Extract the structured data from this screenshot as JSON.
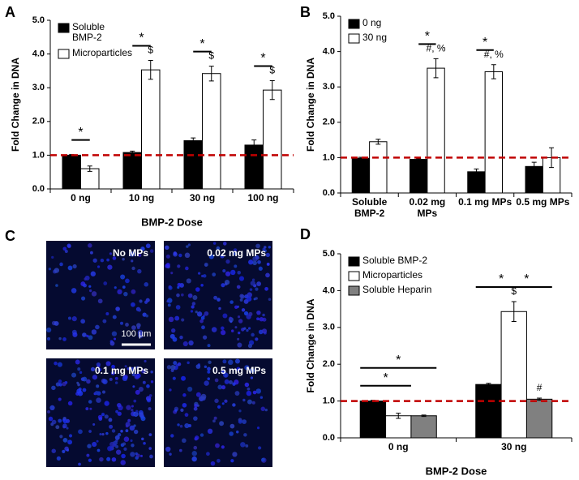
{
  "chart_data": [
    {
      "type": "bar",
      "label": "A",
      "ylabel": "Fold Change in DNA",
      "xlabel": "BMP-2 Dose",
      "categories": [
        "0 ng",
        "10 ng",
        "30 ng",
        "100 ng"
      ],
      "series": [
        {
          "name": "Soluble BMP-2",
          "color": "#000000",
          "values": [
            1.0,
            1.08,
            1.43,
            1.3
          ],
          "errors": [
            0.02,
            0.04,
            0.08,
            0.15
          ]
        },
        {
          "name": "Microparticles",
          "color": "#ffffff",
          "values": [
            0.6,
            3.53,
            3.42,
            2.93
          ],
          "errors": [
            0.08,
            0.28,
            0.22,
            0.28
          ],
          "value_labels": [
            null,
            "$",
            "$",
            "$"
          ]
        }
      ],
      "brackets": [
        {
          "category": 0,
          "bars": [
            0,
            1
          ],
          "text": "*"
        },
        {
          "category": 1,
          "bars": [
            0,
            1
          ],
          "text": "*"
        },
        {
          "category": 2,
          "bars": [
            0,
            1
          ],
          "text": "*"
        },
        {
          "category": 3,
          "bars": [
            0,
            1
          ],
          "text": "*"
        }
      ],
      "reference_line": {
        "value": 1,
        "color": "#c00000"
      },
      "ylim": [
        0,
        5
      ],
      "yticks": [
        {
          "value": 0,
          "label": "0.0"
        },
        {
          "value": 1,
          "label": "1.0"
        },
        {
          "value": 2,
          "label": "2.0"
        },
        {
          "value": 3,
          "label": "3.0"
        },
        {
          "value": 4,
          "label": "4.0"
        },
        {
          "value": 5,
          "label": "5.0"
        }
      ],
      "legend": "upper left"
    },
    {
      "type": "bar",
      "label": "B",
      "ylabel": "Fold Change in DNA",
      "categories": [
        "Soluble BMP-2",
        "0.02 mg MPs",
        "0.1 mg MPs",
        "0.5 mg MPs"
      ],
      "series": [
        {
          "name": "0 ng",
          "color": "#000000",
          "values": [
            0.98,
            0.95,
            0.6,
            0.75
          ],
          "errors": [
            0.03,
            0.02,
            0.08,
            0.12
          ]
        },
        {
          "name": "30 ng",
          "color": "#ffffff",
          "values": [
            1.45,
            3.53,
            3.43,
            1.0
          ],
          "errors": [
            0.07,
            0.27,
            0.2,
            0.28
          ],
          "value_labels": [
            null,
            "#, %",
            "#, %",
            null
          ]
        }
      ],
      "brackets": [
        {
          "category": 1,
          "bars": [
            0,
            1
          ],
          "text": "*"
        },
        {
          "category": 2,
          "bars": [
            0,
            1
          ],
          "text": "*"
        }
      ],
      "reference_line": {
        "value": 1,
        "color": "#c00000"
      },
      "ylim": [
        0,
        5
      ],
      "yticks": [
        {
          "value": 0,
          "label": "0.0"
        },
        {
          "value": 1,
          "label": "1.0"
        },
        {
          "value": 2,
          "label": "2.0"
        },
        {
          "value": 3,
          "label": "3.0"
        },
        {
          "value": 4,
          "label": "4.0"
        },
        {
          "value": 5,
          "label": "5.0"
        }
      ],
      "legend": "upper left"
    },
    {
      "type": "bar",
      "label": "D",
      "ylabel": "Fold Change in DNA",
      "xlabel": "BMP-2 Dose",
      "categories": [
        "0 ng",
        "30 ng"
      ],
      "series": [
        {
          "name": "Soluble BMP-2",
          "color": "#000000",
          "values": [
            1.0,
            1.45
          ],
          "errors": [
            0.02,
            0.03
          ]
        },
        {
          "name": "Microparticles",
          "color": "#ffffff",
          "values": [
            0.6,
            3.43
          ],
          "errors": [
            0.07,
            0.27
          ],
          "value_labels": [
            null,
            "$"
          ]
        },
        {
          "name": "Soluble Heparin",
          "color": "#808080",
          "values": [
            0.6,
            1.05
          ],
          "errors": [
            0.02,
            0.03
          ],
          "value_labels": [
            null,
            "#"
          ]
        }
      ],
      "brackets": [
        {
          "category": 0,
          "bars": [
            0,
            1
          ],
          "text": "*"
        },
        {
          "category": 0,
          "bars": [
            0,
            2
          ],
          "text": "*"
        },
        {
          "category": 1,
          "bars": [
            0,
            1
          ],
          "text": "*"
        },
        {
          "category": 1,
          "bars": [
            1,
            2
          ],
          "text": "*"
        }
      ],
      "reference_line": {
        "value": 1,
        "color": "#c00000"
      },
      "ylim": [
        0,
        5
      ],
      "yticks": [
        {
          "value": 0,
          "label": "0.0"
        },
        {
          "value": 1,
          "label": "1.0"
        },
        {
          "value": 2,
          "label": "2.0"
        },
        {
          "value": 3,
          "label": "3.0"
        },
        {
          "value": 4,
          "label": "4.0"
        },
        {
          "value": 5,
          "label": "5.0"
        }
      ],
      "legend": "upper left"
    }
  ],
  "images": {
    "label": "C",
    "panels": [
      "No MPs",
      "0.02 mg MPs",
      "0.1 mg MPs",
      "0.5 mg MPs"
    ],
    "scale_bar": "100 µm"
  }
}
